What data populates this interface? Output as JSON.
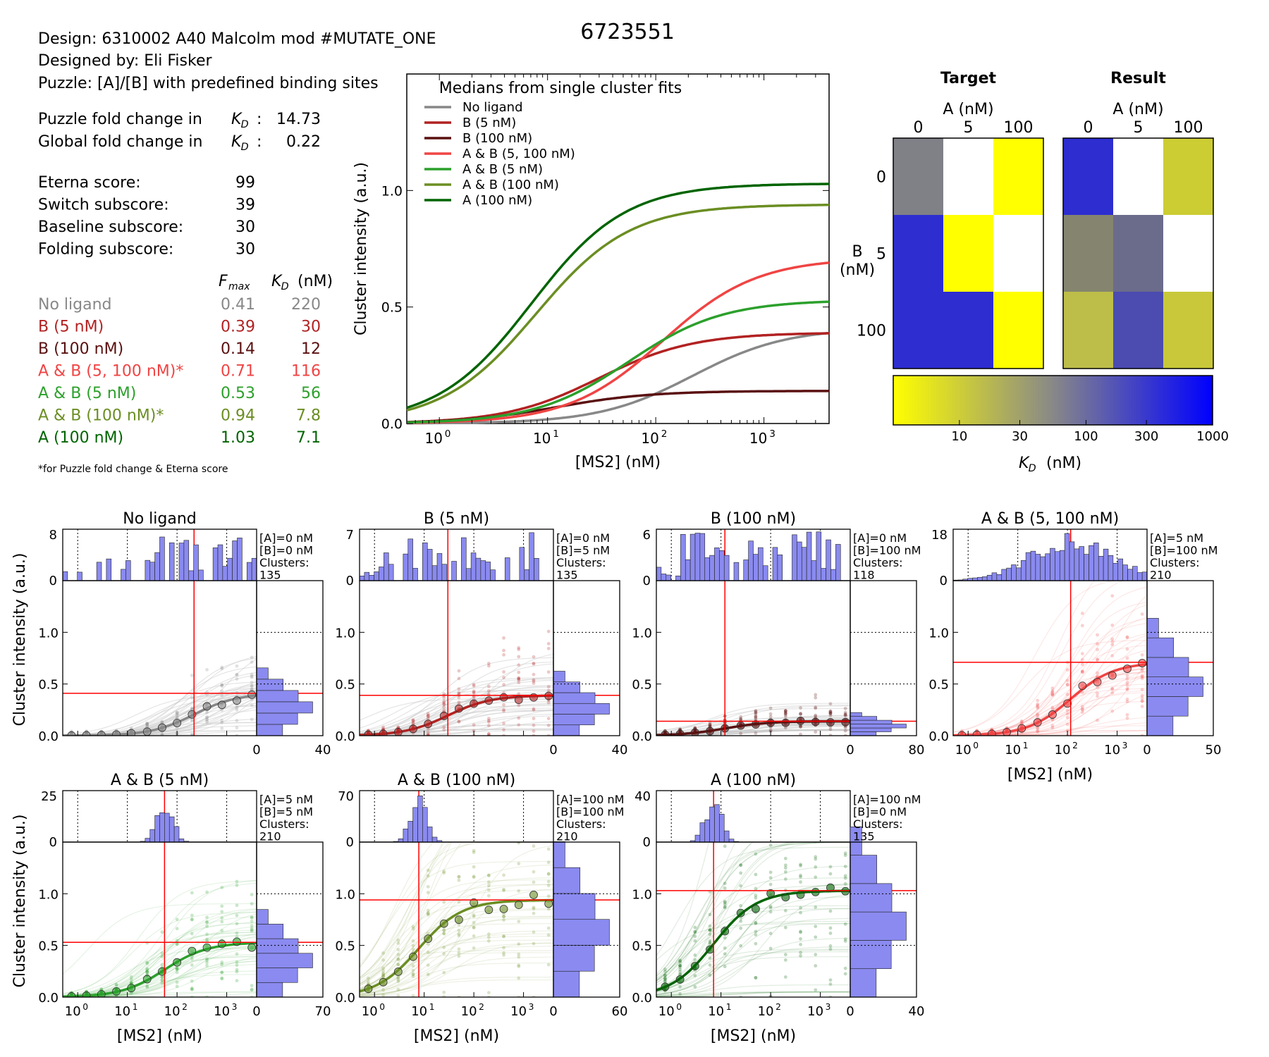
{
  "header": {
    "id_title": "6723551",
    "design": "Design: 6310002 A40 Malcolm mod #MUTATE_ONE",
    "designed_by": "Designed by: Eli Fisker",
    "puzzle": "Puzzle: [A]/[B] with predefined binding sites",
    "puzzle_fold_label": "Puzzle fold change in",
    "puzzle_fold_value": "14.73",
    "global_fold_label": "Global fold change in",
    "global_fold_value": "0.22",
    "kd_symbol": "K",
    "kd_sub": "D",
    "scores": [
      {
        "label": "Eterna score:",
        "value": "99"
      },
      {
        "label": "Switch subscore:",
        "value": "39"
      },
      {
        "label": "Baseline subscore:",
        "value": "30"
      },
      {
        "label": "Folding subscore:",
        "value": "30"
      }
    ],
    "fmax_header_main": "F",
    "fmax_header_sub": "max",
    "kd_header_unit": "(nM)",
    "footnote": "*for Puzzle fold change & Eterna score"
  },
  "conditions": [
    {
      "label": "No ligand",
      "fmax": "0.41",
      "kd": "220",
      "color": "#888888"
    },
    {
      "label": "B (5 nM)",
      "fmax": "0.39",
      "kd": "30",
      "color": "#b22222"
    },
    {
      "label": "B (100 nM)",
      "fmax": "0.14",
      "kd": "12",
      "color": "#5a1010"
    },
    {
      "label": "A & B (5, 100 nM)*",
      "fmax": "0.71",
      "kd": "116",
      "color": "#f04444"
    },
    {
      "label": "A & B (5 nM)",
      "fmax": "0.53",
      "kd": "56",
      "color": "#2ca02c"
    },
    {
      "label": "A & B (100 nM)*",
      "fmax": "0.94",
      "kd": "7.8",
      "color": "#6b8e23"
    },
    {
      "label": "A (100 nM)",
      "fmax": "1.03",
      "kd": "7.1",
      "color": "#006400"
    }
  ],
  "chart_data": [
    {
      "type": "line",
      "title": "Medians from single cluster fits",
      "xlabel": "[MS2] (nM)",
      "ylabel": "Cluster intensity (a.u.)",
      "xscale": "log",
      "xlim": [
        0.5,
        4000
      ],
      "ylim": [
        0,
        1.5
      ],
      "xticks": [
        "10^0",
        "10^1",
        "10^2",
        "10^3"
      ],
      "yticks": [
        "0.0",
        "0.5",
        "1.0"
      ],
      "legend_position": "top-left",
      "series": [
        {
          "name": "No ligand",
          "fmax": 0.41,
          "kd": 220,
          "color": "#888888"
        },
        {
          "name": "B (5 nM)",
          "fmax": 0.39,
          "kd": 30,
          "color": "#b22222"
        },
        {
          "name": "B (100 nM)",
          "fmax": 0.14,
          "kd": 12,
          "color": "#5a1010"
        },
        {
          "name": "A & B (5, 100 nM)",
          "fmax": 0.71,
          "kd": 116,
          "color": "#f04444"
        },
        {
          "name": "A & B (5 nM)",
          "fmax": 0.53,
          "kd": 56,
          "color": "#2ca02c"
        },
        {
          "name": "A & B (100 nM)",
          "fmax": 0.94,
          "kd": 7.8,
          "color": "#6b8e23"
        },
        {
          "name": "A (100 nM)",
          "fmax": 1.03,
          "kd": 7.1,
          "color": "#006400"
        }
      ]
    },
    {
      "type": "heatmap",
      "title": "Target",
      "xlabel": "A (nM)",
      "ylabel": "B (nM)",
      "x_categories": [
        "0",
        "5",
        "100"
      ],
      "y_categories": [
        "0",
        "5",
        "100"
      ],
      "cells": [
        [
          "#808087",
          "#ffffff",
          "#ffff00"
        ],
        [
          "#2d2dd0",
          "#ffff00",
          "#ffffff"
        ],
        [
          "#2d2dd0",
          "#2d2dd0",
          "#ffff00"
        ]
      ]
    },
    {
      "type": "heatmap",
      "title": "Result",
      "xlabel": "A (nM)",
      "ylabel": "B (nM)",
      "x_categories": [
        "0",
        "5",
        "100"
      ],
      "y_categories": [
        "0",
        "5",
        "100"
      ],
      "cells": [
        [
          "#2d2dd0",
          "#ffffff",
          "#cccc33"
        ],
        [
          "#85856f",
          "#6b6b8c",
          "#ffffff"
        ],
        [
          "#bdbd4a",
          "#4b4bb0",
          "#c8c83a"
        ]
      ]
    },
    {
      "type": "colorbar",
      "xlabel": "(nM)",
      "xlabel_symbol": "K",
      "xlabel_sub": "D",
      "xlim": [
        3,
        1000
      ],
      "ticks": [
        "10",
        "30",
        "100",
        "300",
        "1000"
      ],
      "colors": [
        "#ffff00",
        "#888888",
        "#0000ff"
      ]
    },
    {
      "type": "scatter",
      "panels": [
        {
          "title": "No ligand",
          "ann": [
            "[A]=0 nM",
            "[B]=0 nM",
            "Clusters:",
            "135"
          ],
          "fmax": 0.41,
          "kd": 220,
          "color": "#888888",
          "hist_top_max": "8",
          "hist_right_max": "40"
        },
        {
          "title": "B (5 nM)",
          "ann": [
            "[A]=0 nM",
            "[B]=5 nM",
            "Clusters:",
            "135"
          ],
          "fmax": 0.39,
          "kd": 30,
          "color": "#b22222",
          "hist_top_max": "7",
          "hist_right_max": "40"
        },
        {
          "title": "B (100 nM)",
          "ann": [
            "[A]=0 nM",
            "[B]=100 nM",
            "Clusters:",
            "118"
          ],
          "fmax": 0.14,
          "kd": 12,
          "color": "#5a1010",
          "hist_top_max": "6",
          "hist_right_max": "80"
        },
        {
          "title": "A & B (5, 100 nM)",
          "ann": [
            "[A]=5 nM",
            "[B]=100 nM",
            "Clusters:",
            "210"
          ],
          "fmax": 0.71,
          "kd": 116,
          "color": "#f04444",
          "hist_top_max": "18",
          "hist_right_max": "50"
        },
        {
          "title": "A & B (5 nM)",
          "ann": [
            "[A]=5 nM",
            "[B]=5 nM",
            "Clusters:",
            "210"
          ],
          "fmax": 0.53,
          "kd": 56,
          "color": "#2ca02c",
          "hist_top_max": "25",
          "hist_right_max": "70"
        },
        {
          "title": "A & B (100 nM)",
          "ann": [
            "[A]=100 nM",
            "[B]=100 nM",
            "Clusters:",
            "210"
          ],
          "fmax": 0.94,
          "kd": 7.8,
          "color": "#6b8e23",
          "hist_top_max": "70",
          "hist_right_max": "60"
        },
        {
          "title": "A (100 nM)",
          "ann": [
            "[A]=100 nM",
            "[B]=0 nM",
            "Clusters:",
            "135"
          ],
          "fmax": 1.03,
          "kd": 7.1,
          "color": "#006400",
          "hist_top_max": "40",
          "hist_right_max": "40"
        }
      ],
      "xlabel": "[MS2] (nM)",
      "ylabel": "Cluster intensity (a.u.)",
      "xscale": "log",
      "xlim": [
        0.5,
        4000
      ],
      "ylim": [
        0,
        1.5
      ],
      "yticks": [
        "0.0",
        "0.5",
        "1.0"
      ],
      "xticks": [
        "10^0",
        "10^1",
        "10^2",
        "10^3"
      ],
      "hist_zero": "0",
      "fit_line_color": "#ff0000",
      "hist_color": "#8a8af0"
    }
  ]
}
